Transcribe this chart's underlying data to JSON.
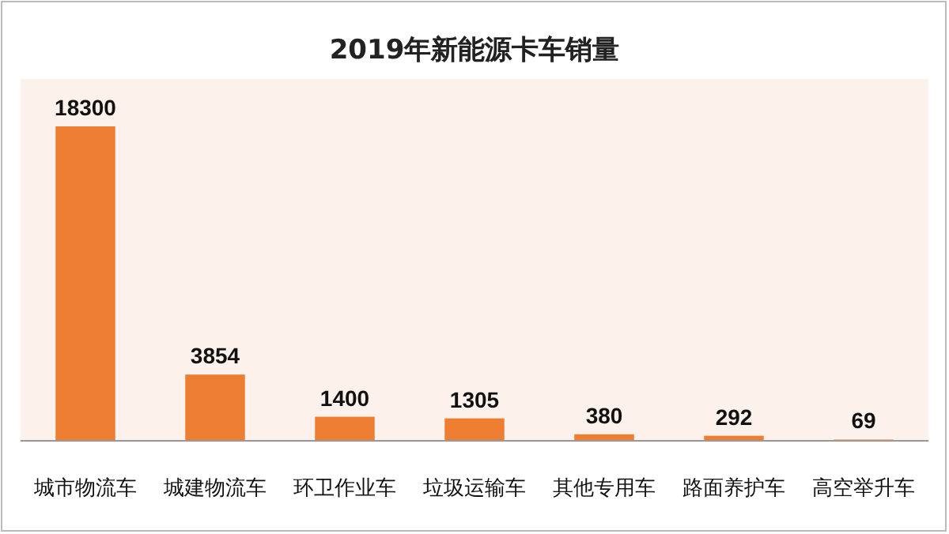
{
  "chart_data": {
    "type": "bar",
    "title": "2019年新能源卡车销量",
    "categories": [
      "城市物流车",
      "城建物流车",
      "环卫作业车",
      "垃圾运输车",
      "其他专用车",
      "路面养护车",
      "高空举升车"
    ],
    "values": [
      18300,
      3854,
      1400,
      1305,
      380,
      292,
      69
    ],
    "color": "#ed7d31",
    "data_labels": true
  }
}
